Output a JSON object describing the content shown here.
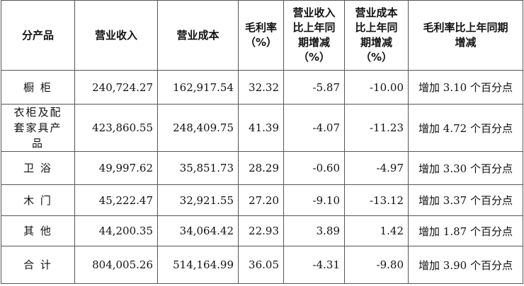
{
  "table": {
    "header": [
      [
        "分产品"
      ],
      [
        "营业收入"
      ],
      [
        "营业成本"
      ],
      [
        "毛利率",
        "（%）"
      ],
      [
        "营业收入",
        "比上年同",
        "期增减",
        "（%）"
      ],
      [
        "营业成本",
        "比上年同",
        "期增减",
        "（%）"
      ],
      [
        "毛利率比上年同期",
        "增减"
      ]
    ],
    "rows": [
      [
        "橱 柜",
        "240,724.27",
        "162,917.54",
        "32.32",
        "-5.87",
        "-10.00",
        "增加 3.10 个百分点"
      ],
      [
        "衣柜及配套家具产品",
        "423,860.55",
        "248,409.75",
        "41.39",
        "-4.07",
        "-11.23",
        "增加 4.72 个百分点"
      ],
      [
        "卫 浴",
        "49,997.62",
        "35,851.73",
        "28.29",
        "-0.60",
        "-4.97",
        "增加 3.30 个百分点"
      ],
      [
        "木 门",
        "45,222.47",
        "32,921.55",
        "27.20",
        "-9.10",
        "-13.12",
        "增加 3.37 个百分点"
      ],
      [
        "其 他",
        "44,200.35",
        "34,064.42",
        "22.93",
        "3.89",
        "1.42",
        "增加 1.87 个百分点"
      ],
      [
        "合 计",
        "804,005.26",
        "514,164.99",
        "36.05",
        "-4.31",
        "-9.80",
        "增加 3.90 个百分点"
      ]
    ]
  }
}
